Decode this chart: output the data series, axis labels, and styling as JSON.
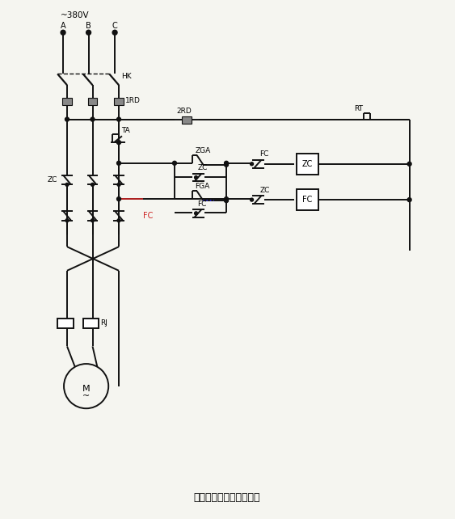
{
  "title": "接触器联锁的正反转控制",
  "title_fontsize": 9,
  "bg_color": "#f5f5f0",
  "line_color": "#1a1a1a",
  "line_width": 1.4,
  "label_fontsize": 6.5,
  "fig_width": 5.63,
  "fig_height": 6.42,
  "voltage_label": "~380V",
  "phase_labels": [
    "A",
    "B",
    "C"
  ],
  "lc": "#111111",
  "red_color": "#cc2222",
  "blue_color": "#2222cc"
}
